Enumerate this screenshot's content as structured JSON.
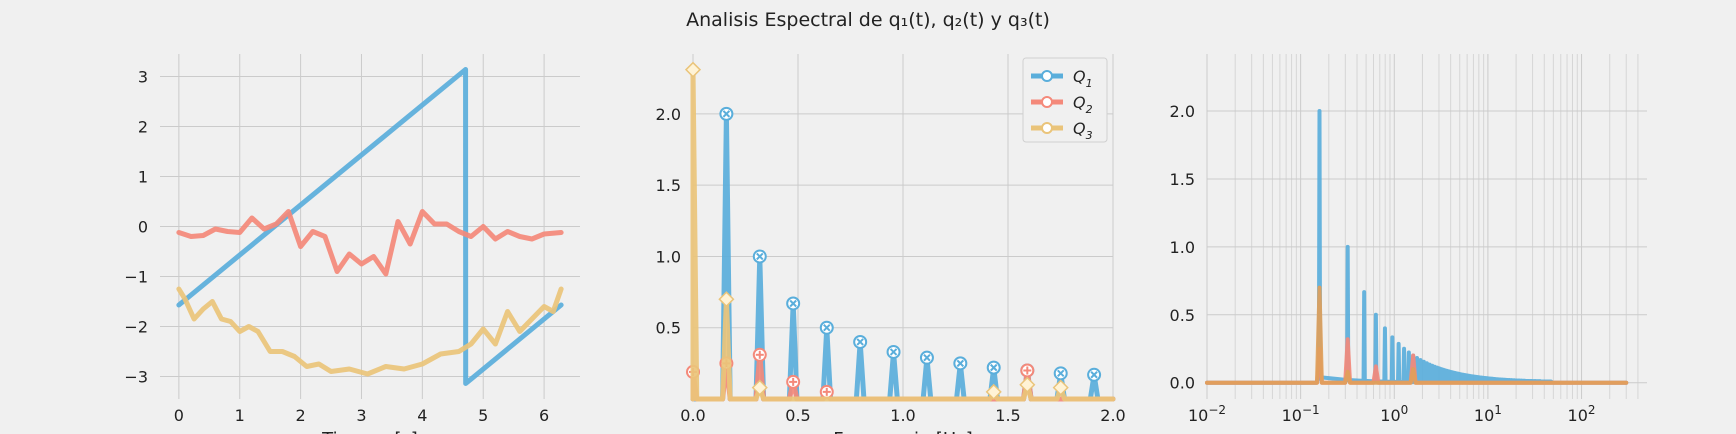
{
  "figure": {
    "suptitle": "Analisis Espectral de q₁(t), q₂(t) y q₃(t)",
    "colors": {
      "q1": "#5aaedb",
      "q2": "#f4897a",
      "q3": "#eac47a",
      "q3_dark": "#e0a05a"
    }
  },
  "chart_data": [
    {
      "type": "line",
      "panel": "time",
      "xlabel": "Tiempo [s]",
      "ylabel": "",
      "xlim": [
        -0.31,
        6.59
      ],
      "ylim": [
        -3.45,
        3.45
      ],
      "xticks": [
        0,
        1,
        2,
        3,
        4,
        5,
        6
      ],
      "yticks": [
        -3,
        -2,
        -1,
        0,
        1,
        2,
        3
      ],
      "grid": true,
      "series": [
        {
          "key": "q1",
          "description_of_shape": "sawtooth",
          "x": [
            0,
            4.71,
            4.712,
            6.28
          ],
          "y": [
            -1.57,
            3.14,
            -3.14,
            -1.57
          ]
        },
        {
          "key": "q2",
          "x": [
            0,
            0.2,
            0.4,
            0.6,
            0.8,
            1.0,
            1.2,
            1.4,
            1.6,
            1.8,
            2.0,
            2.2,
            2.4,
            2.6,
            2.8,
            3.0,
            3.2,
            3.4,
            3.6,
            3.8,
            4.0,
            4.2,
            4.4,
            4.6,
            4.8,
            5.0,
            5.2,
            5.4,
            5.6,
            5.8,
            6.0,
            6.28
          ],
          "y": [
            -0.12,
            -0.2,
            -0.18,
            -0.05,
            -0.1,
            -0.12,
            0.17,
            -0.05,
            0.05,
            0.3,
            -0.4,
            -0.1,
            -0.2,
            -0.9,
            -0.55,
            -0.75,
            -0.6,
            -0.95,
            0.1,
            -0.35,
            0.3,
            0.05,
            0.05,
            -0.1,
            -0.2,
            0.0,
            -0.25,
            -0.1,
            -0.2,
            -0.25,
            -0.15,
            -0.12
          ]
        },
        {
          "key": "q3",
          "x": [
            0,
            0.1,
            0.25,
            0.4,
            0.55,
            0.7,
            0.85,
            1.0,
            1.15,
            1.3,
            1.5,
            1.7,
            1.9,
            2.1,
            2.3,
            2.5,
            2.8,
            3.1,
            3.4,
            3.7,
            4.0,
            4.3,
            4.6,
            4.8,
            5.0,
            5.2,
            5.4,
            5.6,
            5.8,
            6.0,
            6.15,
            6.28
          ],
          "y": [
            -1.25,
            -1.45,
            -1.85,
            -1.65,
            -1.5,
            -1.85,
            -1.9,
            -2.1,
            -2.0,
            -2.1,
            -2.5,
            -2.5,
            -2.6,
            -2.8,
            -2.75,
            -2.9,
            -2.85,
            -2.95,
            -2.8,
            -2.85,
            -2.75,
            -2.55,
            -2.5,
            -2.35,
            -2.05,
            -2.35,
            -1.7,
            -2.1,
            -1.85,
            -1.6,
            -1.7,
            -1.25
          ]
        }
      ]
    },
    {
      "type": "line",
      "panel": "spectrum",
      "xlabel": "Frecuencia [Hz]",
      "ylabel": "",
      "xlim": [
        0.0,
        2.0
      ],
      "ylim": [
        0.0,
        2.42
      ],
      "xticks": [
        0.0,
        0.5,
        1.0,
        1.5,
        2.0
      ],
      "xticklabels": [
        "0.0",
        "0.5",
        "1.0",
        "1.5",
        "2.0"
      ],
      "yticks": [
        0.5,
        1.0,
        1.5,
        2.0
      ],
      "yticklabels": [
        "0.5",
        "1.0",
        "1.5",
        "2.0"
      ],
      "grid": true,
      "legend": {
        "placement": "top-right",
        "entries": [
          "Q",
          "Q",
          "Q"
        ],
        "subscripts": [
          "1",
          "2",
          "3"
        ]
      },
      "series": [
        {
          "key": "q1",
          "marker": "x-circle",
          "peaks_x": [
            0.159,
            0.318,
            0.477,
            0.637,
            0.796,
            0.955,
            1.114,
            1.273,
            1.432,
            1.592,
            1.751,
            1.91
          ],
          "peaks_y": [
            2.0,
            1.0,
            0.67,
            0.5,
            0.4,
            0.33,
            0.29,
            0.25,
            0.22,
            0.2,
            0.18,
            0.17
          ]
        },
        {
          "key": "q2",
          "marker": "plus-circle",
          "peaks_x": [
            0.0,
            0.159,
            0.318,
            0.477,
            0.637,
            1.592
          ],
          "peaks_y": [
            0.19,
            0.25,
            0.31,
            0.12,
            0.05,
            0.2
          ]
        },
        {
          "key": "q3",
          "marker": "diamond",
          "peaks_x": [
            0.0,
            0.159,
            0.318,
            1.432,
            1.592,
            1.751
          ],
          "peaks_y": [
            2.31,
            0.7,
            0.08,
            0.05,
            0.1,
            0.08
          ]
        }
      ]
    },
    {
      "type": "line",
      "panel": "spectrum-log",
      "xscale": "log",
      "xlim": [
        0.01,
        500
      ],
      "ylim": [
        -0.12,
        2.42
      ],
      "xticks": [
        0.01,
        0.1,
        1,
        10,
        100
      ],
      "xticklabels": [
        "10",
        "10",
        "10",
        "10",
        "10"
      ],
      "xtickexp": [
        "−2",
        "−1",
        "0",
        "1",
        "2"
      ],
      "yticks": [
        0.0,
        0.5,
        1.0,
        1.5,
        2.0
      ],
      "yticklabels": [
        "0.0",
        "0.5",
        "1.0",
        "1.5",
        "2.0"
      ],
      "grid": true,
      "series": [
        {
          "key": "q1",
          "peaks_x": [
            0.159,
            0.318,
            0.477,
            0.637,
            0.796,
            0.955,
            1.114,
            1.273,
            1.432,
            1.592
          ],
          "peaks_y": [
            2.0,
            1.0,
            0.67,
            0.5,
            0.4,
            0.33,
            0.29,
            0.25,
            0.22,
            0.2
          ],
          "harmonic_max": 300
        },
        {
          "key": "q2",
          "peaks_x": [
            0.159,
            0.318,
            0.637,
            1.592
          ],
          "peaks_y": [
            0.25,
            0.32,
            0.12,
            0.2
          ]
        },
        {
          "key": "q3",
          "peaks_x": [
            0.159,
            0.318,
            1.592
          ],
          "peaks_y": [
            0.7,
            0.08,
            0.1
          ]
        }
      ]
    }
  ]
}
